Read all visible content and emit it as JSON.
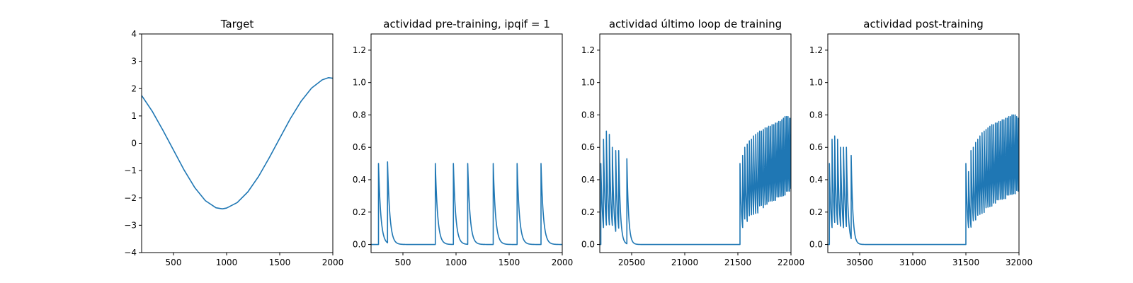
{
  "colors": {
    "series": "#1f77b4",
    "axes": "#000000",
    "background": "#ffffff"
  },
  "chart_data": [
    {
      "type": "line",
      "title": "Target",
      "xlabel": "",
      "ylabel": "",
      "xlim": [
        200,
        2000
      ],
      "ylim": [
        -4,
        4
      ],
      "xticks": [
        500,
        1000,
        1500,
        2000
      ],
      "xtick_labels": [
        "500",
        "1000",
        "1500",
        "2000"
      ],
      "yticks": [
        -4,
        -3,
        -2,
        -1,
        0,
        1,
        2,
        3,
        4
      ],
      "ytick_labels": [
        "−4",
        "−3",
        "−2",
        "−1",
        "0",
        "1",
        "2",
        "3",
        "4"
      ],
      "grid": false,
      "series": [
        {
          "x": [
            200,
            300,
            400,
            500,
            600,
            700,
            800,
            900,
            960,
            1000,
            1100,
            1200,
            1300,
            1400,
            1500,
            1600,
            1700,
            1800,
            1900,
            1960,
            2000
          ],
          "values": [
            1.75,
            1.17,
            0.48,
            -0.25,
            -0.98,
            -1.62,
            -2.1,
            -2.36,
            -2.4,
            -2.37,
            -2.17,
            -1.78,
            -1.22,
            -0.54,
            0.18,
            0.9,
            1.53,
            2.02,
            2.32,
            2.4,
            2.38
          ]
        }
      ]
    },
    {
      "type": "line",
      "title": "actividad pre-training, ipqif = 1",
      "xlabel": "",
      "ylabel": "",
      "xlim": [
        200,
        2000
      ],
      "ylim": [
        -0.05,
        1.3
      ],
      "xticks": [
        500,
        1000,
        1500,
        2000
      ],
      "xtick_labels": [
        "500",
        "1000",
        "1500",
        "2000"
      ],
      "yticks": [
        0.0,
        0.2,
        0.4,
        0.6,
        0.8,
        1.0,
        1.2
      ],
      "ytick_labels": [
        "0.0",
        "0.2",
        "0.4",
        "0.6",
        "0.8",
        "1.0",
        "1.2"
      ],
      "grid": false,
      "series": [
        {
          "baseline": 0.0,
          "spike_times": [
            270,
            355,
            805,
            975,
            1110,
            1350,
            1575,
            1800
          ],
          "spike_peaks": [
            0.5,
            0.51,
            0.5,
            0.5,
            0.5,
            0.5,
            0.5,
            0.5
          ],
          "decay": 22
        }
      ]
    },
    {
      "type": "line",
      "title": "actividad último loop de training",
      "xlabel": "",
      "ylabel": "",
      "xlim": [
        20200,
        22000
      ],
      "ylim": [
        -0.05,
        1.3
      ],
      "xticks": [
        20500,
        21000,
        21500,
        22000
      ],
      "xtick_labels": [
        "20500",
        "21000",
        "21500",
        "22000"
      ],
      "yticks": [
        0.0,
        0.2,
        0.4,
        0.6,
        0.8,
        1.0,
        1.2
      ],
      "ytick_labels": [
        "0.0",
        "0.2",
        "0.4",
        "0.6",
        "0.8",
        "1.0",
        "1.2"
      ],
      "grid": false,
      "series": [
        {
          "baseline": 0.0,
          "spike_times": [
            20210,
            20235,
            20262,
            20290,
            20318,
            20350,
            20378,
            20455,
            21520,
            21545,
            21565,
            21588,
            21608,
            21628,
            21648,
            21668,
            21688,
            21705,
            21722,
            21740,
            21757,
            21774,
            21790,
            21806,
            21822,
            21838,
            21854,
            21869,
            21884,
            21899,
            21914,
            21929,
            21944,
            21958,
            21972,
            21986,
            21999
          ],
          "spike_peaks": [
            0.5,
            0.65,
            0.7,
            0.68,
            0.6,
            0.58,
            0.58,
            0.53,
            0.5,
            0.55,
            0.6,
            0.62,
            0.64,
            0.65,
            0.67,
            0.68,
            0.69,
            0.7,
            0.7,
            0.71,
            0.72,
            0.72,
            0.73,
            0.73,
            0.74,
            0.74,
            0.75,
            0.75,
            0.76,
            0.76,
            0.77,
            0.78,
            0.79,
            0.79,
            0.79,
            0.78,
            0.78
          ],
          "decay": 16
        }
      ]
    },
    {
      "type": "line",
      "title": "actividad post-training",
      "xlabel": "",
      "ylabel": "",
      "xlim": [
        30200,
        32000
      ],
      "ylim": [
        -0.05,
        1.3
      ],
      "xticks": [
        30500,
        31000,
        31500,
        32000
      ],
      "xtick_labels": [
        "30500",
        "31000",
        "31500",
        "32000"
      ],
      "yticks": [
        0.0,
        0.2,
        0.4,
        0.6,
        0.8,
        1.0,
        1.2
      ],
      "ytick_labels": [
        "0.0",
        "0.2",
        "0.4",
        "0.6",
        "0.8",
        "1.0",
        "1.2"
      ],
      "grid": false,
      "series": [
        {
          "baseline": 0.0,
          "spike_times": [
            30215,
            30240,
            30265,
            30292,
            30320,
            30348,
            30375,
            30420,
            31500,
            31525,
            31548,
            31570,
            31592,
            31612,
            31632,
            31652,
            31672,
            31690,
            31708,
            31726,
            31744,
            31761,
            31778,
            31794,
            31810,
            31826,
            31842,
            31858,
            31874,
            31889,
            31904,
            31919,
            31934,
            31949,
            31964,
            31978,
            31992
          ],
          "spike_peaks": [
            0.5,
            0.65,
            0.67,
            0.65,
            0.6,
            0.6,
            0.6,
            0.55,
            0.5,
            0.45,
            0.58,
            0.6,
            0.63,
            0.65,
            0.67,
            0.69,
            0.7,
            0.71,
            0.72,
            0.73,
            0.74,
            0.74,
            0.75,
            0.75,
            0.76,
            0.76,
            0.77,
            0.77,
            0.78,
            0.78,
            0.79,
            0.79,
            0.8,
            0.8,
            0.8,
            0.79,
            0.78
          ],
          "decay": 16
        }
      ]
    }
  ]
}
